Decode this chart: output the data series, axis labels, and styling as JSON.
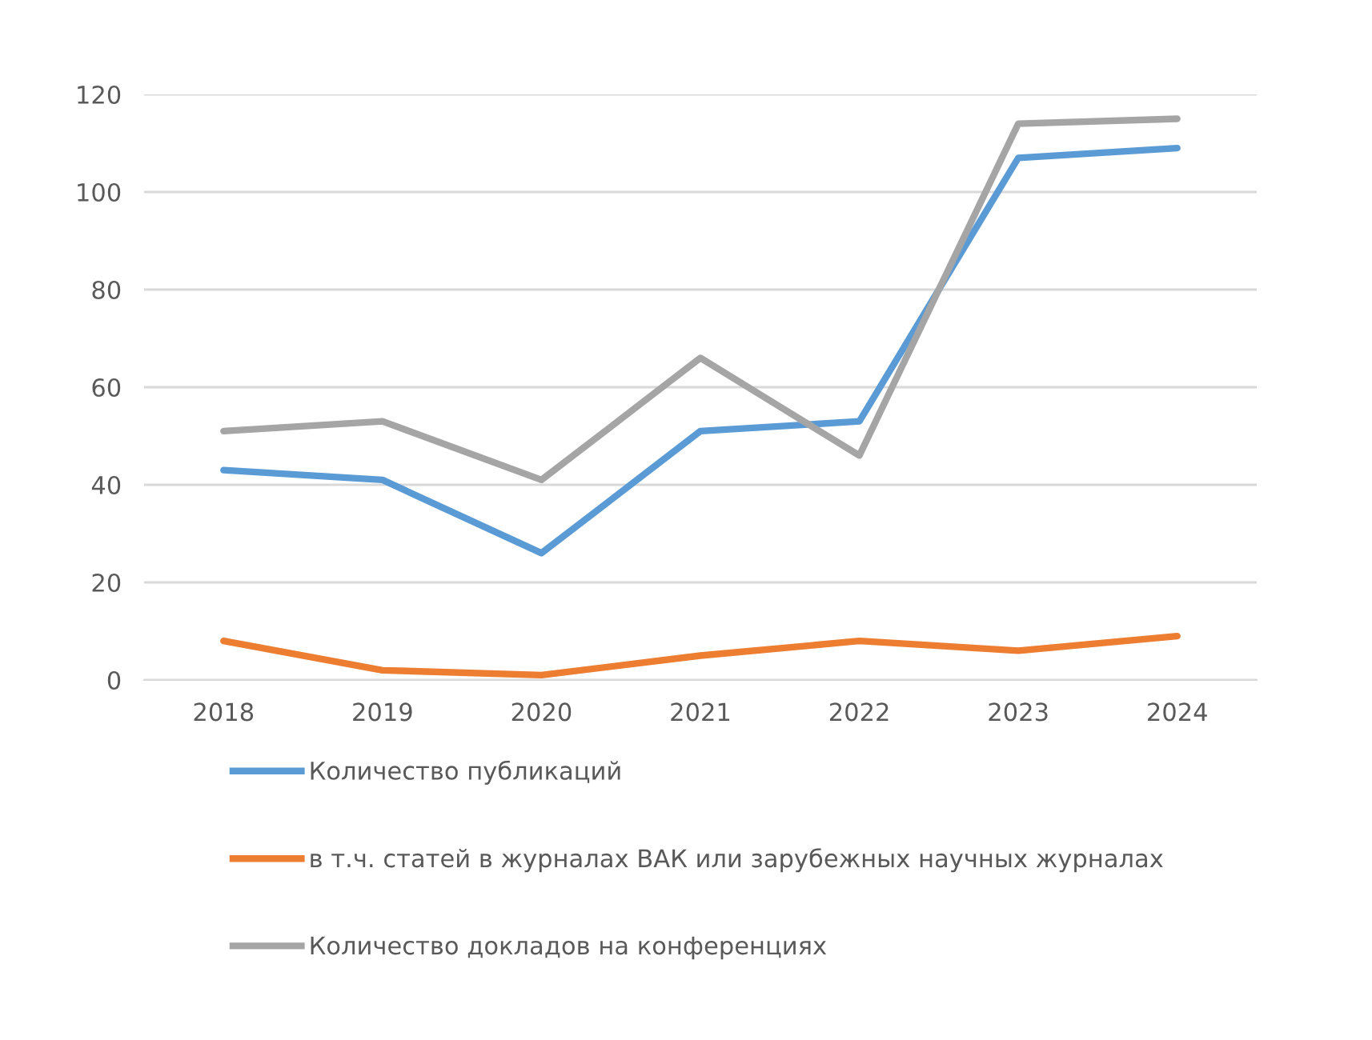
{
  "chart_data": {
    "type": "line",
    "categories": [
      "2018",
      "2019",
      "2020",
      "2021",
      "2022",
      "2023",
      "2024"
    ],
    "series": [
      {
        "name": "Количество публикаций",
        "color": "#5b9bd5",
        "values": [
          43,
          41,
          26,
          51,
          53,
          107,
          109
        ]
      },
      {
        "name": "в т.ч. статей в журналах ВАК или зарубежных научных журналах",
        "color": "#ed7d31",
        "values": [
          8,
          2,
          1,
          5,
          8,
          6,
          9
        ]
      },
      {
        "name": "Количество докладов на конференциях",
        "color": "#a5a5a5",
        "values": [
          51,
          53,
          41,
          66,
          46,
          114,
          115
        ]
      }
    ],
    "ylim": [
      0,
      120
    ],
    "yticks": [
      0,
      20,
      40,
      60,
      80,
      100,
      120
    ],
    "grid": "y",
    "legend": "bottom",
    "marker": "none",
    "line_style": "solid"
  }
}
